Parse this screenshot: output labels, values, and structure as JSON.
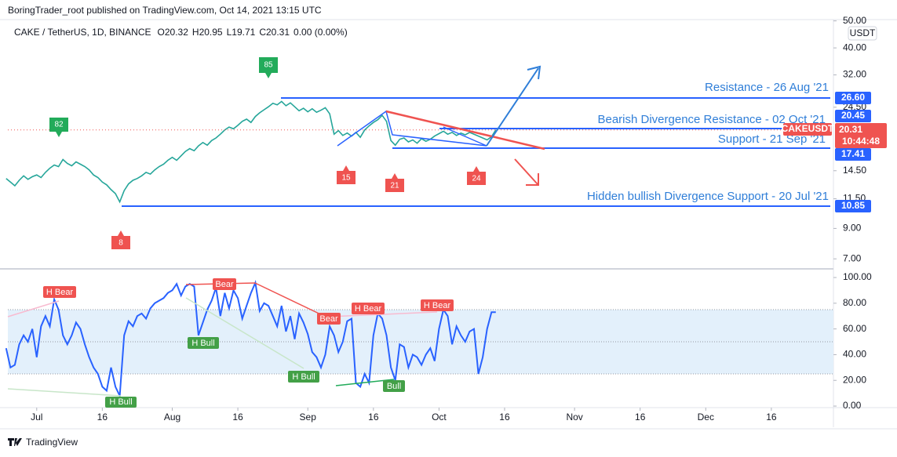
{
  "header": {
    "byline": "BoringTrader_root published on TradingView.com, Oct 14, 2021 13:15 UTC",
    "symbol": "CAKE / TetherUS, 1D, BINANCE",
    "ohlc": [
      {
        "key": "O",
        "value": "20.32"
      },
      {
        "key": "H",
        "value": "20.95"
      },
      {
        "key": "L",
        "value": "19.71"
      },
      {
        "key": "C",
        "value": "20.31"
      }
    ],
    "change": "0.00 (0.00%)",
    "currency": "USDT"
  },
  "chart_data": [
    {
      "type": "line",
      "color": "#26a69a",
      "log_scale": true,
      "xlim": [
        175.4,
        364.2
      ],
      "ylim": [
        6.57,
        52.2
      ],
      "xticks": [
        {
          "value": 182,
          "label": "Jul"
        },
        {
          "value": 197,
          "label": "16"
        },
        {
          "value": 213,
          "label": "Aug"
        },
        {
          "value": 228,
          "label": "16"
        },
        {
          "value": 244,
          "label": "Sep"
        },
        {
          "value": 259,
          "label": "16"
        },
        {
          "value": 274,
          "label": "Oct"
        },
        {
          "value": 289,
          "label": "16"
        },
        {
          "value": 305,
          "label": "Nov"
        },
        {
          "value": 320,
          "label": "16"
        },
        {
          "value": 335,
          "label": "Dec"
        },
        {
          "value": 350,
          "label": "16"
        }
      ],
      "yticks": [
        {
          "value": 50,
          "label": "50.00"
        },
        {
          "value": 40,
          "label": "40.00"
        },
        {
          "value": 32,
          "label": "32.00"
        },
        {
          "value": 24.5,
          "label": "24.50"
        },
        {
          "value": 14.5,
          "label": "14.50"
        },
        {
          "value": 11.5,
          "label": "11.50"
        },
        {
          "value": 9,
          "label": "9.00"
        },
        {
          "value": 7,
          "label": "7.00"
        }
      ],
      "x": [
        175,
        176,
        177,
        178,
        179,
        180,
        181,
        182,
        183,
        184,
        185,
        186,
        187,
        188,
        189,
        190,
        191,
        192,
        193,
        194,
        195,
        196,
        197,
        198,
        199,
        200,
        201,
        202,
        203,
        204,
        205,
        206,
        207,
        208,
        209,
        210,
        211,
        212,
        213,
        214,
        215,
        216,
        217,
        218,
        219,
        220,
        221,
        222,
        223,
        224,
        225,
        226,
        227,
        228,
        229,
        230,
        231,
        232,
        233,
        234,
        235,
        236,
        237,
        238,
        239,
        240,
        241,
        242,
        243,
        244,
        245,
        246,
        247,
        248,
        249,
        250,
        251,
        252,
        253,
        254,
        255,
        256,
        257,
        258,
        259,
        260,
        261,
        262,
        263,
        264,
        265,
        266,
        267,
        268,
        269,
        270,
        271,
        272,
        273,
        274,
        275,
        276,
        277,
        278,
        279,
        280,
        281,
        282,
        283,
        284,
        285,
        286,
        287
      ],
      "values": [
        13.6,
        13.2,
        12.8,
        13.4,
        13.9,
        13.5,
        13.8,
        14.0,
        13.7,
        14.3,
        14.8,
        15.2,
        15.0,
        15.9,
        15.4,
        15.1,
        15.6,
        15.3,
        15.0,
        14.6,
        14.0,
        13.7,
        13.2,
        12.9,
        12.4,
        12.0,
        11.2,
        12.3,
        13.0,
        13.4,
        13.6,
        13.9,
        14.3,
        14.1,
        14.6,
        15.0,
        15.3,
        15.8,
        16.2,
        15.8,
        16.4,
        17.0,
        17.4,
        17.1,
        17.8,
        18.3,
        17.9,
        18.6,
        19.0,
        19.6,
        20.3,
        20.8,
        20.5,
        21.1,
        21.8,
        22.2,
        21.6,
        22.7,
        23.4,
        24.0,
        24.6,
        25.3,
        25.0,
        25.7,
        24.8,
        25.4,
        24.6,
        23.8,
        24.3,
        23.6,
        24.2,
        23.5,
        23.9,
        24.4,
        23.2,
        19.6,
        20.2,
        19.4,
        19.8,
        19.3,
        19.9,
        19.1,
        20.3,
        21.0,
        21.6,
        22.1,
        22.9,
        21.8,
        18.6,
        17.9,
        18.8,
        19.0,
        18.4,
        18.7,
        18.2,
        18.9,
        18.5,
        18.8,
        19.3,
        19.7,
        20.1,
        19.6,
        19.9,
        19.4,
        19.8,
        19.5,
        19.9,
        19.6,
        19.3,
        19.0,
        18.7,
        19.2,
        20.31
      ]
    },
    {
      "type": "line",
      "color": "#2962ff",
      "xlim": [
        175.4,
        364.2
      ],
      "ylim": [
        -1.2,
        105.5
      ],
      "band": [
        25,
        75
      ],
      "band_color": "#e3f0fb",
      "levels": [
        75,
        50,
        25
      ],
      "yticks": [
        {
          "value": 100,
          "label": "100.00"
        },
        {
          "value": 80,
          "label": "80.00"
        },
        {
          "value": 60,
          "label": "60.00"
        },
        {
          "value": 40,
          "label": "40.00"
        },
        {
          "value": 20,
          "label": "20.00"
        },
        {
          "value": 0,
          "label": "0.00"
        }
      ],
      "x": [
        175,
        176,
        177,
        178,
        179,
        180,
        181,
        182,
        183,
        184,
        185,
        186,
        187,
        188,
        189,
        190,
        191,
        192,
        193,
        194,
        195,
        196,
        197,
        198,
        199,
        200,
        201,
        202,
        203,
        204,
        205,
        206,
        207,
        208,
        209,
        210,
        211,
        212,
        213,
        214,
        215,
        216,
        217,
        218,
        219,
        220,
        221,
        222,
        223,
        224,
        225,
        226,
        227,
        228,
        229,
        230,
        231,
        232,
        233,
        234,
        235,
        236,
        237,
        238,
        239,
        240,
        241,
        242,
        243,
        244,
        245,
        246,
        247,
        248,
        249,
        250,
        251,
        252,
        253,
        254,
        255,
        256,
        257,
        258,
        259,
        260,
        261,
        262,
        263,
        264,
        265,
        266,
        267,
        268,
        269,
        270,
        271,
        272,
        273,
        274,
        275,
        276,
        277,
        278,
        279,
        280,
        281,
        282,
        283,
        284,
        285,
        286,
        287
      ],
      "values": [
        45,
        30,
        32,
        48,
        55,
        50,
        60,
        38,
        62,
        70,
        62,
        83,
        75,
        55,
        48,
        55,
        65,
        60,
        48,
        38,
        30,
        25,
        15,
        12,
        30,
        15,
        8,
        55,
        66,
        62,
        70,
        72,
        68,
        76,
        80,
        82,
        84,
        88,
        90,
        95,
        86,
        93,
        95,
        93,
        55,
        65,
        75,
        82,
        92,
        70,
        88,
        76,
        90,
        84,
        68,
        78,
        88,
        96,
        74,
        80,
        78,
        70,
        62,
        78,
        58,
        70,
        52,
        72,
        65,
        56,
        42,
        38,
        30,
        40,
        62,
        55,
        42,
        50,
        66,
        68,
        18,
        15,
        25,
        18,
        55,
        72,
        68,
        55,
        30,
        20,
        48,
        46,
        30,
        40,
        38,
        32,
        40,
        45,
        35,
        60,
        75,
        70,
        48,
        62,
        55,
        50,
        58,
        60,
        25,
        38,
        60,
        73,
        73
      ]
    }
  ],
  "price_labels": [
    "26.60",
    "20.45",
    "CAKEUSDT",
    "20.31",
    "10:44:48",
    "17.41",
    "10.85"
  ],
  "line_notes": [
    "Resistance - 26 Aug '21",
    "Bearish Divergence Resistance - 02 Oct '21",
    "Support - 21 Sep '21",
    "Hidden bullish Divergence Support - 20 Jul '21"
  ],
  "badges": [
    "85",
    "82",
    "15",
    "21",
    "24",
    "8"
  ],
  "rsi_labels": [
    "H Bear",
    "Bear",
    "Bear",
    "H Bear",
    "H Bear",
    "H Bull",
    "H Bull",
    "H Bull",
    "Bull"
  ],
  "footer": {
    "brand": "TradingView"
  }
}
